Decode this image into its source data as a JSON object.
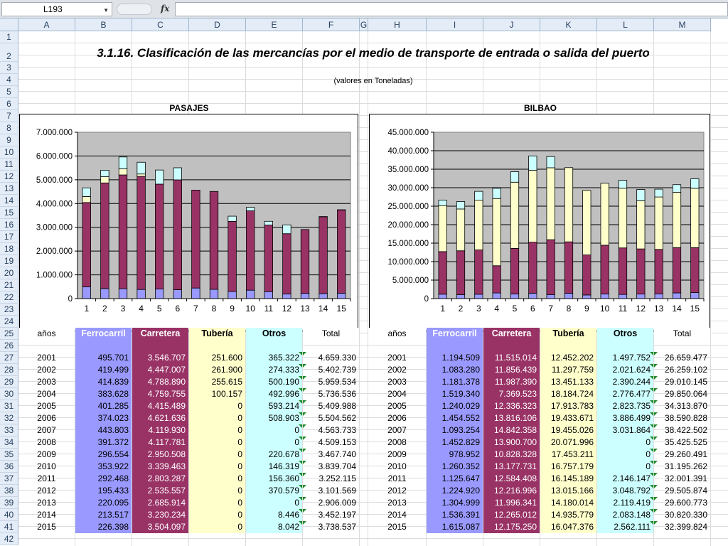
{
  "formula_bar": {
    "name_box": "L193",
    "fx": "fx"
  },
  "columns": [
    "A",
    "B",
    "C",
    "D",
    "E",
    "F",
    "G",
    "H",
    "I",
    "J",
    "K",
    "L",
    "M"
  ],
  "rows": [
    "1",
    "2",
    "3",
    "4",
    "5",
    "6",
    "7",
    "8",
    "9",
    "10",
    "11",
    "12",
    "13",
    "14",
    "15",
    "16",
    "17",
    "18",
    "19",
    "20",
    "21",
    "22",
    "23",
    "24",
    "25",
    "26",
    "27",
    "28",
    "29",
    "30",
    "31",
    "32",
    "33",
    "34",
    "35",
    "36",
    "37",
    "38",
    "39",
    "40",
    "41",
    "42"
  ],
  "sheet": {
    "title": "3.1.16. Clasificación de las mercancías por el medio de transporte de entrada o salida del puerto",
    "subtitle": "(valores en Toneladas)"
  },
  "colors": {
    "ferrocarril": "#9999ff",
    "carretera": "#993366",
    "tuberia": "#ffffcc",
    "otros": "#ccffff",
    "plot_bg": "#c0c0c0"
  },
  "chart_data": [
    {
      "type": "bar",
      "title": "PASAJES",
      "stacked": true,
      "categories": [
        "1",
        "2",
        "3",
        "4",
        "5",
        "6",
        "7",
        "8",
        "9",
        "10",
        "11",
        "12",
        "13",
        "14",
        "15"
      ],
      "ylim": [
        0,
        7000000
      ],
      "yticks": [
        "0",
        "1.000.000",
        "2.000.000",
        "3.000.000",
        "4.000.000",
        "5.000.000",
        "6.000.000",
        "7.000.000"
      ],
      "grid": true,
      "series": [
        {
          "values": [
            495701,
            419499,
            414839,
            383628,
            401285,
            374023,
            443803,
            391372,
            296554,
            353922,
            292468,
            195433,
            220095,
            213517,
            226398
          ]
        },
        {
          "values": [
            3546707,
            4447007,
            4788890,
            4759755,
            4415489,
            4621636,
            4119930,
            4117781,
            2950508,
            3339463,
            2803287,
            2535557,
            2685914,
            3230234,
            3504097
          ]
        },
        {
          "values": [
            251600,
            261900,
            255615,
            100157,
            0,
            0,
            0,
            0,
            0,
            0,
            0,
            0,
            0,
            0,
            0
          ]
        },
        {
          "values": [
            365322,
            274333,
            500190,
            492996,
            593214,
            508903,
            0,
            0,
            220678,
            146319,
            156360,
            370579,
            0,
            8446,
            8042
          ]
        }
      ]
    },
    {
      "type": "bar",
      "title": "BILBAO",
      "stacked": true,
      "categories": [
        "1",
        "2",
        "3",
        "4",
        "5",
        "6",
        "7",
        "8",
        "9",
        "10",
        "11",
        "12",
        "13",
        "14",
        "15"
      ],
      "ylim": [
        0,
        45000000
      ],
      "yticks": [
        "0",
        "5.000.000",
        "10.000.000",
        "15.000.000",
        "20.000.000",
        "25.000.000",
        "30.000.000",
        "35.000.000",
        "40.000.000",
        "45.000.000"
      ],
      "grid": true,
      "series": [
        {
          "values": [
            1194509,
            1083280,
            1181378,
            1519340,
            1240029,
            1454552,
            1093254,
            1452829,
            978952,
            1260352,
            1125647,
            1224920,
            1304999,
            1536391,
            1615087
          ]
        },
        {
          "values": [
            11515014,
            11856439,
            11987390,
            7369523,
            12336323,
            13816106,
            14842358,
            13900700,
            10828328,
            13177731,
            12584408,
            12216996,
            11996341,
            12265012,
            12175250
          ]
        },
        {
          "values": [
            12452202,
            11297759,
            13451133,
            18184724,
            17913783,
            19433671,
            19455026,
            20071996,
            17453211,
            16757179,
            16145189,
            13015166,
            14180014,
            14935779,
            16047376
          ]
        },
        {
          "values": [
            1497752,
            2021624,
            2390244,
            2776477,
            2823735,
            3886499,
            3031864,
            0,
            0,
            0,
            2146147,
            3048792,
            2119419,
            2083148,
            2562111
          ]
        }
      ]
    }
  ],
  "tables": {
    "headers": [
      "años",
      "Ferrocarril",
      "Carretera",
      "Tubería",
      "Otros",
      "Total"
    ],
    "pasajes": [
      [
        "2001",
        "495.701",
        "3.546.707",
        "251.600",
        "365.322",
        "4.659.330"
      ],
      [
        "2002",
        "419.499",
        "4.447.007",
        "261.900",
        "274.333",
        "5.402.739"
      ],
      [
        "2003",
        "414.839",
        "4.788.890",
        "255.615",
        "500.190",
        "5.959.534"
      ],
      [
        "2004",
        "383.628",
        "4.759.755",
        "100.157",
        "492.996",
        "5.736.536"
      ],
      [
        "2005",
        "401.285",
        "4.415.489",
        "0",
        "593.214",
        "5.409.988"
      ],
      [
        "2006",
        "374.023",
        "4.621.636",
        "0",
        "508.903",
        "5.504.562"
      ],
      [
        "2007",
        "443.803",
        "4.119.930",
        "0",
        "0",
        "4.563.733"
      ],
      [
        "2008",
        "391.372",
        "4.117.781",
        "0",
        "0",
        "4.509.153"
      ],
      [
        "2009",
        "296.554",
        "2.950.508",
        "0",
        "220.678",
        "3.467.740"
      ],
      [
        "2010",
        "353.922",
        "3.339.463",
        "0",
        "146.319",
        "3.839.704"
      ],
      [
        "2011",
        "292.468",
        "2.803.287",
        "0",
        "156.360",
        "3.252.115"
      ],
      [
        "2012",
        "195.433",
        "2.535.557",
        "0",
        "370.579",
        "3.101.569"
      ],
      [
        "2013",
        "220.095",
        "2.685.914",
        "0",
        "0",
        "2.906.009"
      ],
      [
        "2014",
        "213.517",
        "3.230.234",
        "0",
        "8.446",
        "3.452.197"
      ],
      [
        "2015",
        "226.398",
        "3.504.097",
        "0",
        "8.042",
        "3.738.537"
      ]
    ],
    "bilbao": [
      [
        "2001",
        "1.194.509",
        "11.515.014",
        "12.452.202",
        "1.497.752",
        "26.659.477"
      ],
      [
        "2002",
        "1.083.280",
        "11.856.439",
        "11.297.759",
        "2.021.624",
        "26.259.102"
      ],
      [
        "2003",
        "1.181.378",
        "11.987.390",
        "13.451.133",
        "2.390.244",
        "29.010.145"
      ],
      [
        "2004",
        "1.519.340",
        "7.369.523",
        "18.184.724",
        "2.776.477",
        "29.850.064"
      ],
      [
        "2005",
        "1.240.029",
        "12.336.323",
        "17.913.783",
        "2.823.735",
        "34.313.870"
      ],
      [
        "2006",
        "1.454.552",
        "13.816.106",
        "19.433.671",
        "3.886.499",
        "38.590.828"
      ],
      [
        "2007",
        "1.093.254",
        "14.842.358",
        "19.455.026",
        "3.031.864",
        "38.422.502"
      ],
      [
        "2008",
        "1.452.829",
        "13.900.700",
        "20.071.996",
        "0",
        "35.425.525"
      ],
      [
        "2009",
        "978.952",
        "10.828.328",
        "17.453.211",
        "0",
        "29.260.491"
      ],
      [
        "2010",
        "1.260.352",
        "13.177.731",
        "16.757.179",
        "0",
        "31.195.262"
      ],
      [
        "2011",
        "1.125.647",
        "12.584.408",
        "16.145.189",
        "2.146.147",
        "32.001.391"
      ],
      [
        "2012",
        "1.224.920",
        "12.216.996",
        "13.015.166",
        "3.048.792",
        "29.505.874"
      ],
      [
        "2013",
        "1.304.999",
        "11.996.341",
        "14.180.014",
        "2.119.419",
        "29.600.773"
      ],
      [
        "2014",
        "1.536.391",
        "12.265.012",
        "14.935.779",
        "2.083.148",
        "30.820.330"
      ],
      [
        "2015",
        "1.615.087",
        "12.175.250",
        "16.047.376",
        "2.562.111",
        "32.399.824"
      ]
    ]
  }
}
